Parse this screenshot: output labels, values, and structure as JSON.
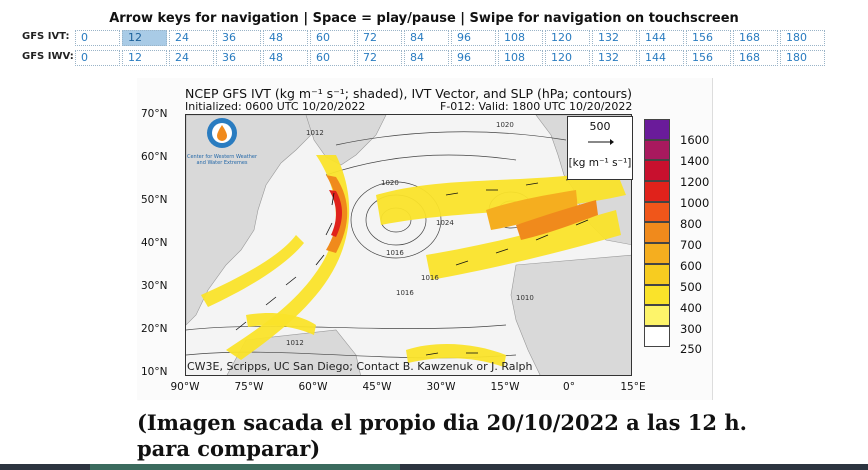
{
  "nav_hint": "Arrow keys for navigation | Space = play/pause | Swipe for navigation on touchscreen",
  "rows": [
    {
      "label": "GFS IVT:",
      "hours": [
        "0",
        "12",
        "24",
        "36",
        "48",
        "60",
        "72",
        "84",
        "96",
        "108",
        "120",
        "132",
        "144",
        "156",
        "168",
        "180"
      ],
      "active_index": 1
    },
    {
      "label": "GFS IWV:",
      "hours": [
        "0",
        "12",
        "24",
        "36",
        "48",
        "60",
        "72",
        "84",
        "96",
        "108",
        "120",
        "132",
        "144",
        "156",
        "168",
        "180"
      ],
      "active_index": -1
    }
  ],
  "map": {
    "title": "NCEP GFS IVT (kg m⁻¹ s⁻¹; shaded), IVT Vector, and SLP (hPa; contours)",
    "initialized": "Initialized: 0600 UTC 10/20/2022",
    "valid": "F-012: Valid: 1800 UTC 10/20/2022",
    "lat_labels": [
      "70°N",
      "60°N",
      "50°N",
      "40°N",
      "30°N",
      "20°N",
      "10°N"
    ],
    "lon_labels": [
      "90°W",
      "75°W",
      "60°W",
      "45°W",
      "30°W",
      "15°W",
      "0°",
      "15°E"
    ],
    "reference_vector": {
      "value": "500",
      "unit": "[kg m⁻¹ s⁻¹]"
    },
    "colorbar": {
      "labels": [
        "1600",
        "1400",
        "1200",
        "1000",
        "800",
        "700",
        "600",
        "500",
        "400",
        "300",
        "250"
      ],
      "colors": [
        "#6a1b9a",
        "#a8195e",
        "#c8102e",
        "#e0221b",
        "#f0561a",
        "#f08a1c",
        "#f5ae1f",
        "#f7cc20",
        "#fae32a",
        "#fdf46a",
        "#ffffff"
      ]
    },
    "isobar_labels": [
      "1020",
      "1016",
      "1016",
      "1016",
      "1012",
      "1010",
      "1012",
      "1024",
      "1020"
    ],
    "logo_caption": "Center for Western Weather and Water Extremes",
    "credit": "CW3E, Scripps, UC San Diego; Contact B. Kawzenuk or J. Ralph"
  },
  "caption": "(Imagen sacada el propio dia 20/10/2022 a las 12 h. para comparar)"
}
